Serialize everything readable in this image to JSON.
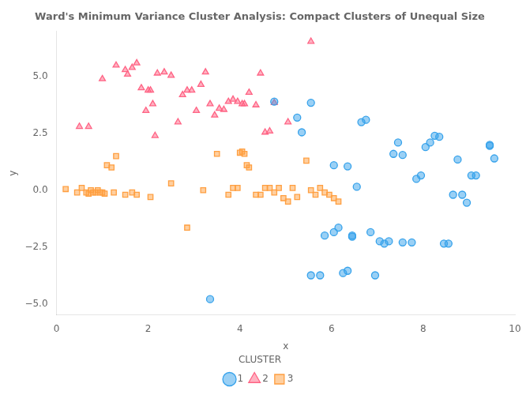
{
  "chart_data": {
    "type": "scatter",
    "title": "Ward's Minimum Variance Cluster Analysis: Compact Clusters of Unequal Size",
    "xlabel": "x",
    "ylabel": "y",
    "xlim": [
      0,
      10
    ],
    "ylim": [
      -5.5,
      7.0
    ],
    "xticks": [
      0,
      2,
      4,
      6,
      8,
      10
    ],
    "yticks": [
      {
        "value": -5.0,
        "label": "−5.0"
      },
      {
        "value": -2.5,
        "label": "−2.5"
      },
      {
        "value": 0.0,
        "label": "0.0"
      },
      {
        "value": 2.5,
        "label": "2.5"
      },
      {
        "value": 5.0,
        "label": "5.0"
      }
    ],
    "grid": false,
    "legend": "bottom",
    "legend_title": "CLUSTER",
    "series": [
      {
        "name": "1",
        "marker": "circle",
        "x": [
          3.35,
          4.75,
          5.25,
          5.35,
          5.55,
          5.75,
          5.85,
          6.05,
          6.15,
          6.25,
          6.35,
          6.35,
          6.45,
          6.55,
          6.65,
          6.75,
          6.85,
          6.95,
          7.05,
          7.15,
          7.25,
          7.55,
          7.75,
          7.85,
          7.95,
          8.05,
          8.15,
          8.45,
          8.55,
          8.65,
          8.85,
          8.95,
          9.05,
          9.15,
          9.45,
          9.55,
          5.55,
          6.05,
          6.45,
          7.35,
          7.45,
          7.55,
          8.25,
          8.35,
          8.75,
          9.45
        ],
        "values": [
          -4.8,
          3.9,
          3.2,
          2.55,
          3.85,
          -3.75,
          -2.0,
          -1.85,
          -1.65,
          -3.65,
          1.05,
          -3.55,
          -2.05,
          0.15,
          3.0,
          3.1,
          -1.85,
          -3.75,
          -2.25,
          -2.35,
          -2.25,
          -2.3,
          -2.3,
          0.5,
          0.65,
          1.9,
          2.1,
          -2.35,
          -2.35,
          -0.2,
          -0.2,
          -0.55,
          0.65,
          0.65,
          1.95,
          1.4,
          -3.75,
          1.1,
          -2.0,
          1.6,
          2.1,
          1.55,
          2.4,
          2.35,
          1.35,
          2.0
        ]
      },
      {
        "name": "2",
        "marker": "triangle",
        "x": [
          0.5,
          0.7,
          1.0,
          1.3,
          1.5,
          1.55,
          1.65,
          1.75,
          1.85,
          1.95,
          2.0,
          2.05,
          2.1,
          2.15,
          2.2,
          2.35,
          2.5,
          2.65,
          2.75,
          2.85,
          2.95,
          3.05,
          3.15,
          3.25,
          3.35,
          3.45,
          3.55,
          3.65,
          3.75,
          3.85,
          3.95,
          4.05,
          4.1,
          4.2,
          4.35,
          4.45,
          4.55,
          4.65,
          4.75,
          5.05,
          5.55
        ],
        "values": [
          2.8,
          2.8,
          4.9,
          5.5,
          5.3,
          5.1,
          5.4,
          5.6,
          4.5,
          3.5,
          4.4,
          4.4,
          3.8,
          2.4,
          5.15,
          5.2,
          5.05,
          3.0,
          4.2,
          4.4,
          4.4,
          3.5,
          4.65,
          5.2,
          3.8,
          3.3,
          3.6,
          3.55,
          3.9,
          4.0,
          3.9,
          3.8,
          3.8,
          4.3,
          3.75,
          5.15,
          2.55,
          2.6,
          3.85,
          3.0,
          6.55
        ]
      },
      {
        "name": "3",
        "marker": "square",
        "x": [
          0.2,
          0.45,
          0.55,
          0.65,
          0.7,
          0.75,
          0.8,
          0.85,
          0.9,
          0.95,
          1.0,
          1.05,
          1.1,
          1.2,
          1.25,
          1.3,
          1.5,
          1.65,
          1.75,
          2.05,
          2.5,
          2.85,
          3.2,
          3.5,
          3.75,
          3.85,
          3.95,
          4.0,
          4.05,
          4.1,
          4.15,
          4.2,
          4.35,
          4.45,
          4.55,
          4.65,
          4.75,
          4.85,
          4.95,
          5.05,
          5.15,
          5.25,
          5.45,
          5.55,
          5.65,
          5.75,
          5.85,
          5.95,
          6.05,
          6.15
        ],
        "values": [
          0.05,
          -0.1,
          0.1,
          -0.1,
          -0.15,
          0.0,
          -0.1,
          -0.1,
          0.0,
          -0.1,
          -0.1,
          -0.15,
          1.1,
          1.0,
          -0.1,
          1.5,
          -0.2,
          -0.1,
          -0.2,
          -0.3,
          0.3,
          -1.65,
          0.0,
          1.6,
          -0.2,
          0.1,
          0.1,
          1.65,
          1.7,
          1.6,
          1.1,
          1.0,
          -0.2,
          -0.2,
          0.1,
          0.1,
          -0.1,
          0.1,
          -0.35,
          -0.5,
          0.1,
          -0.3,
          1.3,
          0.0,
          -0.2,
          0.1,
          -0.1,
          -0.2,
          -0.35,
          -0.5
        ]
      }
    ]
  }
}
